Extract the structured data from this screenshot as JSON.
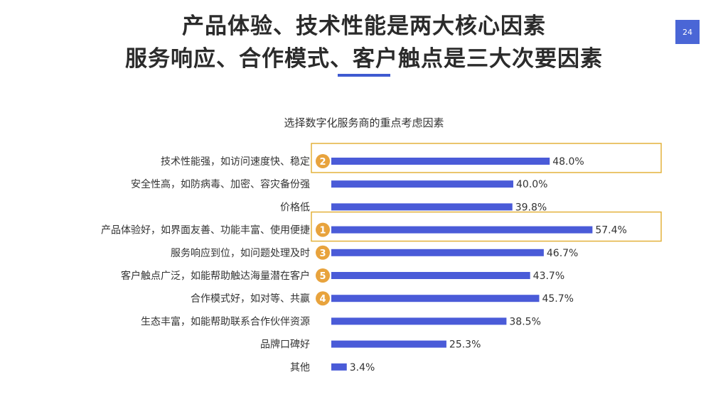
{
  "header": {
    "title_line1": "产品体验、技术性能是两大核心因素",
    "title_line2": "服务响应、合作模式、客户触点是三大次要因素",
    "page_number": "24"
  },
  "colors": {
    "bar": "#4a5bd8",
    "highlight_border": "#e3b23c",
    "badge": "#e8a33d",
    "accent": "#3f5bd1"
  },
  "chart_data": {
    "type": "bar",
    "orientation": "horizontal",
    "title": "选择数字化服务商的重点考虑因素",
    "categories": [
      "技术性能强，如访问速度快、稳定",
      "安全性高，如防病毒、加密、容灾备份强",
      "价格低",
      "产品体验好，如界面友善、功能丰富、使用便捷",
      "服务响应到位，如问题处理及时",
      "客户触点广泛，如能帮助触达海量潜在客户",
      "合作模式好，如对等、共赢",
      "生态丰富，如能帮助联系合作伙伴资源",
      "品牌口碑好",
      "其他"
    ],
    "values": [
      48.0,
      40.0,
      39.8,
      57.4,
      46.7,
      43.7,
      45.7,
      38.5,
      25.3,
      3.4
    ],
    "value_labels": [
      "48.0%",
      "40.0%",
      "39.8%",
      "57.4%",
      "46.7%",
      "43.7%",
      "45.7%",
      "38.5%",
      "25.3%",
      "3.4%"
    ],
    "rank_badges": [
      "2",
      "",
      "",
      "1",
      "3",
      "5",
      "4",
      "",
      "",
      ""
    ],
    "highlighted": [
      true,
      false,
      false,
      true,
      false,
      false,
      false,
      false,
      false,
      false
    ],
    "xlim": [
      0,
      60
    ],
    "grid": false,
    "legend": "none"
  }
}
